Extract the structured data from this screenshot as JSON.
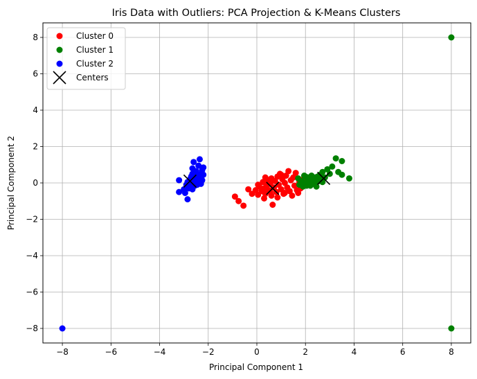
{
  "chart_data": {
    "type": "scatter",
    "title": "Iris Data with Outliers: PCA Projection & K-Means Clusters",
    "xlabel": "Principal Component 1",
    "ylabel": "Principal Component 2",
    "xlim": [
      -8.8,
      8.8
    ],
    "ylim": [
      -8.8,
      8.8
    ],
    "xticks": [
      -8,
      -6,
      -4,
      -2,
      0,
      2,
      4,
      6,
      8
    ],
    "yticks": [
      -8,
      -6,
      -4,
      -2,
      0,
      2,
      4,
      6,
      8
    ],
    "xtick_labels": [
      "−8",
      "−6",
      "−4",
      "−2",
      "0",
      "2",
      "4",
      "6",
      "8"
    ],
    "ytick_labels": [
      "−8",
      "−6",
      "−4",
      "−2",
      "0",
      "2",
      "4",
      "6",
      "8"
    ],
    "grid": true,
    "legend_position": "top-left",
    "series": [
      {
        "name": "Cluster 0",
        "color": "#ff0000",
        "points": [
          [
            -0.9,
            -0.75
          ],
          [
            -0.75,
            -1.0
          ],
          [
            -0.55,
            -1.25
          ],
          [
            -0.35,
            -0.35
          ],
          [
            -0.2,
            -0.6
          ],
          [
            -0.05,
            -0.4
          ],
          [
            0.05,
            -0.65
          ],
          [
            0.1,
            -0.2
          ],
          [
            0.2,
            -0.45
          ],
          [
            0.25,
            0.05
          ],
          [
            0.3,
            -0.3
          ],
          [
            0.35,
            -0.6
          ],
          [
            0.4,
            -0.15
          ],
          [
            0.45,
            0.15
          ],
          [
            0.5,
            -0.4
          ],
          [
            0.55,
            -0.05
          ],
          [
            0.6,
            0.25
          ],
          [
            0.6,
            -0.7
          ],
          [
            0.65,
            -1.2
          ],
          [
            0.7,
            -0.25
          ],
          [
            0.75,
            0.1
          ],
          [
            0.8,
            -0.5
          ],
          [
            0.85,
            0.35
          ],
          [
            0.9,
            -0.1
          ],
          [
            0.95,
            0.5
          ],
          [
            1.0,
            -0.35
          ],
          [
            1.05,
            0.2
          ],
          [
            1.1,
            -0.6
          ],
          [
            1.15,
            0.0
          ],
          [
            1.2,
            0.4
          ],
          [
            1.25,
            -0.25
          ],
          [
            1.3,
            0.65
          ],
          [
            1.35,
            -0.45
          ],
          [
            1.4,
            0.15
          ],
          [
            1.45,
            -0.7
          ],
          [
            1.5,
            0.3
          ],
          [
            1.55,
            -0.15
          ],
          [
            1.6,
            0.55
          ],
          [
            1.65,
            -0.4
          ],
          [
            1.75,
            0.05
          ],
          [
            1.8,
            -0.3
          ],
          [
            1.9,
            0.2
          ],
          [
            0.05,
            -0.1
          ],
          [
            0.35,
            0.3
          ],
          [
            0.85,
            -0.8
          ],
          [
            1.15,
            -0.55
          ],
          [
            0.55,
            -0.5
          ],
          [
            1.0,
            0.45
          ],
          [
            1.7,
            -0.55
          ],
          [
            0.3,
            -0.85
          ]
        ]
      },
      {
        "name": "Cluster 1",
        "color": "#008000",
        "points": [
          [
            1.7,
            0.25
          ],
          [
            1.75,
            -0.1
          ],
          [
            1.85,
            0.1
          ],
          [
            1.9,
            -0.2
          ],
          [
            1.95,
            0.4
          ],
          [
            2.0,
            0.0
          ],
          [
            2.05,
            -0.15
          ],
          [
            2.1,
            0.3
          ],
          [
            2.15,
            -0.1
          ],
          [
            2.2,
            0.15
          ],
          [
            2.25,
            0.4
          ],
          [
            2.3,
            -0.05
          ],
          [
            2.35,
            0.25
          ],
          [
            2.4,
            0.05
          ],
          [
            2.45,
            -0.2
          ],
          [
            2.5,
            0.35
          ],
          [
            2.55,
            0.1
          ],
          [
            2.6,
            0.45
          ],
          [
            2.65,
            0.2
          ],
          [
            2.7,
            0.6
          ],
          [
            2.8,
            0.3
          ],
          [
            2.9,
            0.75
          ],
          [
            3.0,
            0.5
          ],
          [
            3.1,
            0.9
          ],
          [
            3.25,
            1.35
          ],
          [
            3.35,
            0.6
          ],
          [
            3.5,
            1.2
          ],
          [
            3.5,
            0.45
          ],
          [
            3.8,
            0.25
          ],
          [
            2.0,
            0.35
          ],
          [
            2.2,
            -0.15
          ],
          [
            2.4,
            0.3
          ],
          [
            1.8,
            0.05
          ],
          [
            2.1,
            0.15
          ],
          [
            2.3,
            0.2
          ],
          [
            2.7,
            0.05
          ],
          [
            8.0,
            8.0
          ],
          [
            8.0,
            -8.0
          ]
        ]
      },
      {
        "name": "Cluster 2",
        "color": "#0000ff",
        "points": [
          [
            -3.2,
            0.15
          ],
          [
            -3.2,
            -0.5
          ],
          [
            -3.0,
            -0.35
          ],
          [
            -2.95,
            -0.55
          ],
          [
            -2.9,
            -0.1
          ],
          [
            -2.85,
            0.05
          ],
          [
            -2.85,
            -0.9
          ],
          [
            -2.8,
            -0.3
          ],
          [
            -2.75,
            0.2
          ],
          [
            -2.75,
            -0.05
          ],
          [
            -2.7,
            0.35
          ],
          [
            -2.7,
            -0.2
          ],
          [
            -2.65,
            0.5
          ],
          [
            -2.65,
            0.8
          ],
          [
            -2.6,
            1.15
          ],
          [
            -2.6,
            0.0
          ],
          [
            -2.55,
            0.25
          ],
          [
            -2.55,
            -0.15
          ],
          [
            -2.5,
            0.65
          ],
          [
            -2.5,
            0.1
          ],
          [
            -2.45,
            0.4
          ],
          [
            -2.45,
            -0.1
          ],
          [
            -2.4,
            0.95
          ],
          [
            -2.4,
            0.2
          ],
          [
            -2.35,
            1.3
          ],
          [
            -2.35,
            0.05
          ],
          [
            -2.3,
            0.5
          ],
          [
            -2.3,
            -0.05
          ],
          [
            -2.25,
            0.7
          ],
          [
            -2.2,
            0.85
          ],
          [
            -2.2,
            0.45
          ],
          [
            -2.25,
            0.15
          ],
          [
            -2.55,
            0.55
          ],
          [
            -2.65,
            -0.35
          ],
          [
            -2.4,
            0.35
          ],
          [
            -8.0,
            -8.0
          ]
        ]
      }
    ],
    "centers": {
      "name": "Centers",
      "color": "#000000",
      "marker": "x",
      "points": [
        [
          -2.75,
          0.1
        ],
        [
          0.65,
          -0.3
        ],
        [
          2.75,
          0.25
        ]
      ]
    }
  }
}
